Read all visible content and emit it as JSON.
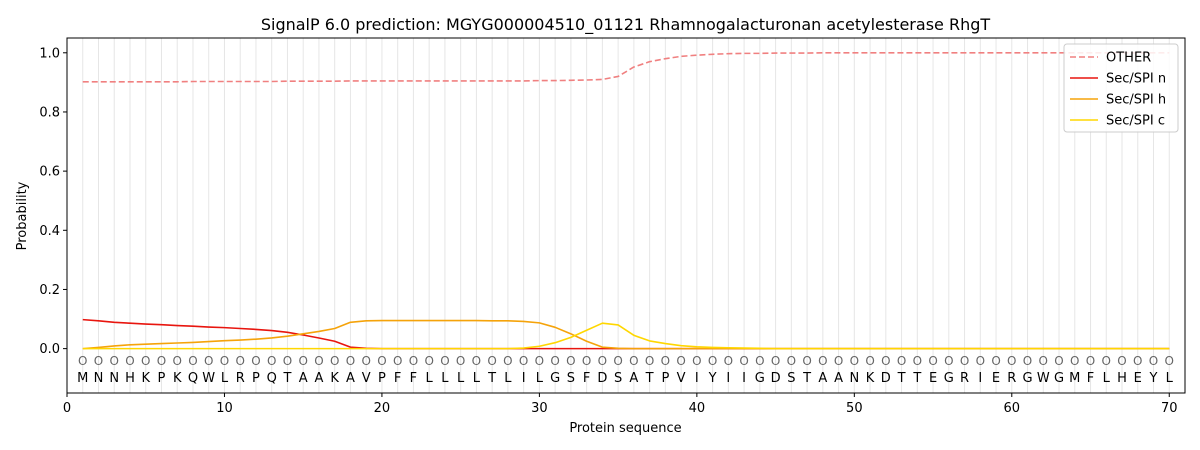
{
  "chart_data": {
    "type": "line",
    "title": "SignalP 6.0 prediction: MGYG000004510_01121 Rhamnogalacturonan acetylesterase RhgT",
    "xlabel": "Protein sequence",
    "ylabel": "Probability",
    "xlim": [
      0,
      71
    ],
    "ylim": [
      -0.15,
      1.05
    ],
    "grid": "vertical lines at each residue",
    "legend_position": "top-right",
    "x_ticks": [
      "0",
      "10",
      "20",
      "30",
      "40",
      "50",
      "60",
      "70"
    ],
    "y_ticks": [
      "0.0",
      "0.2",
      "0.4",
      "0.6",
      "0.8",
      "1.0"
    ],
    "residue_labels": [
      "M",
      "N",
      "N",
      "H",
      "K",
      "P",
      "K",
      "Q",
      "W",
      "L",
      "R",
      "P",
      "Q",
      "T",
      "A",
      "A",
      "K",
      "A",
      "V",
      "P",
      "F",
      "F",
      "L",
      "L",
      "L",
      "L",
      "T",
      "L",
      "I",
      "L",
      "G",
      "S",
      "F",
      "D",
      "S",
      "A",
      "T",
      "P",
      "V",
      "I",
      "Y",
      "I",
      "I",
      "G",
      "D",
      "S",
      "T",
      "A",
      "A",
      "N",
      "K",
      "D",
      "T",
      "T",
      "E",
      "G",
      "R",
      "I",
      "E",
      "R",
      "G",
      "W",
      "G",
      "M",
      "F",
      "L",
      "H",
      "E",
      "Y",
      "L"
    ],
    "region_labels": [
      "O",
      "O",
      "O",
      "O",
      "O",
      "O",
      "O",
      "O",
      "O",
      "O",
      "O",
      "O",
      "O",
      "O",
      "O",
      "O",
      "O",
      "O",
      "O",
      "O",
      "O",
      "O",
      "O",
      "O",
      "O",
      "O",
      "O",
      "O",
      "O",
      "O",
      "O",
      "O",
      "O",
      "O",
      "O",
      "O",
      "O",
      "O",
      "O",
      "O",
      "O",
      "O",
      "O",
      "O",
      "O",
      "O",
      "O",
      "O",
      "O",
      "O",
      "O",
      "O",
      "O",
      "O",
      "O",
      "O",
      "O",
      "O",
      "O",
      "O",
      "O",
      "O",
      "O",
      "O",
      "O",
      "O",
      "O",
      "O",
      "O",
      "O"
    ],
    "series": [
      {
        "name": "OTHER",
        "color": "#f08080",
        "dash": true,
        "values": [
          0.902,
          0.902,
          0.902,
          0.902,
          0.902,
          0.902,
          0.902,
          0.903,
          0.903,
          0.903,
          0.903,
          0.903,
          0.903,
          0.904,
          0.904,
          0.904,
          0.904,
          0.905,
          0.905,
          0.905,
          0.905,
          0.905,
          0.905,
          0.905,
          0.905,
          0.905,
          0.905,
          0.905,
          0.905,
          0.906,
          0.906,
          0.907,
          0.908,
          0.91,
          0.92,
          0.952,
          0.97,
          0.98,
          0.988,
          0.992,
          0.995,
          0.997,
          0.998,
          0.998,
          0.999,
          0.999,
          0.999,
          1.0,
          1.0,
          1.0,
          1.0,
          1.0,
          1.0,
          1.0,
          1.0,
          1.0,
          1.0,
          1.0,
          1.0,
          1.0,
          1.0,
          1.0,
          1.0,
          1.0,
          1.0,
          1.0,
          1.0,
          1.0,
          1.0,
          1.0
        ]
      },
      {
        "name": "Sec/SPI n",
        "color": "#e8150e",
        "dash": false,
        "values": [
          0.098,
          0.094,
          0.089,
          0.086,
          0.083,
          0.081,
          0.078,
          0.076,
          0.073,
          0.071,
          0.068,
          0.065,
          0.061,
          0.055,
          0.046,
          0.036,
          0.025,
          0.005,
          0.001,
          0.0,
          0.0,
          0.0,
          0.0,
          0.0,
          0.0,
          0.0,
          0.0,
          0.0,
          0.0,
          0.0,
          0.0,
          0.0,
          0.0,
          0.0,
          0.0,
          0.0,
          0.0,
          0.0,
          0.0,
          0.0,
          0.0,
          0.0,
          0.0,
          0.0,
          0.0,
          0.0,
          0.0,
          0.0,
          0.0,
          0.0,
          0.0,
          0.0,
          0.0,
          0.0,
          0.0,
          0.0,
          0.0,
          0.0,
          0.0,
          0.0,
          0.0,
          0.0,
          0.0,
          0.0,
          0.0,
          0.0,
          0.0,
          0.0,
          0.0,
          0.0
        ]
      },
      {
        "name": "Sec/SPI h",
        "color": "#f5a30a",
        "dash": false,
        "values": [
          0.0,
          0.004,
          0.009,
          0.013,
          0.015,
          0.017,
          0.019,
          0.021,
          0.024,
          0.027,
          0.029,
          0.032,
          0.036,
          0.042,
          0.05,
          0.058,
          0.068,
          0.089,
          0.094,
          0.095,
          0.095,
          0.095,
          0.095,
          0.095,
          0.095,
          0.095,
          0.094,
          0.094,
          0.092,
          0.087,
          0.072,
          0.05,
          0.025,
          0.005,
          0.001,
          0.0,
          0.0,
          0.0,
          0.0,
          0.0,
          0.0,
          0.0,
          0.0,
          0.0,
          0.0,
          0.0,
          0.0,
          0.0,
          0.0,
          0.0,
          0.0,
          0.0,
          0.0,
          0.0,
          0.0,
          0.0,
          0.0,
          0.0,
          0.0,
          0.0,
          0.0,
          0.0,
          0.0,
          0.0,
          0.0,
          0.0,
          0.0,
          0.0,
          0.0,
          0.0
        ]
      },
      {
        "name": "Sec/SPI c",
        "color": "#ffd700",
        "dash": false,
        "values": [
          0.0,
          0.0,
          0.0,
          0.0,
          0.0,
          0.0,
          0.0,
          0.0,
          0.0,
          0.0,
          0.0,
          0.0,
          0.0,
          0.0,
          0.0,
          0.0,
          0.0,
          0.0,
          0.0,
          0.0,
          0.0,
          0.0,
          0.0,
          0.0,
          0.0,
          0.0,
          0.0,
          0.0,
          0.002,
          0.008,
          0.02,
          0.038,
          0.062,
          0.086,
          0.08,
          0.045,
          0.026,
          0.017,
          0.01,
          0.006,
          0.004,
          0.003,
          0.002,
          0.001,
          0.0,
          0.0,
          0.0,
          0.0,
          0.0,
          0.0,
          0.0,
          0.0,
          0.0,
          0.0,
          0.0,
          0.0,
          0.0,
          0.0,
          0.0,
          0.0,
          0.0,
          0.0,
          0.0,
          0.0,
          0.0,
          0.0,
          0.0,
          0.0,
          0.0,
          0.0
        ]
      }
    ]
  }
}
